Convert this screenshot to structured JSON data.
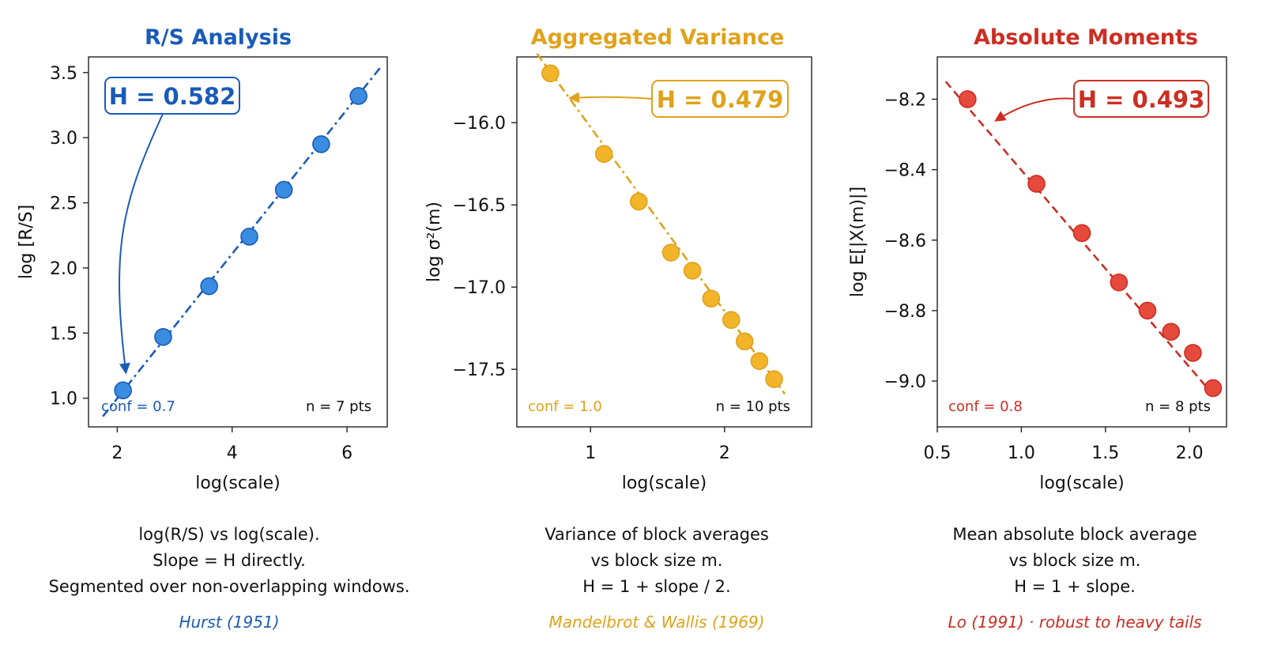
{
  "chart_data": [
    {
      "type": "scatter",
      "title": "R/S Analysis",
      "color": "#1a5bb8",
      "marker_color": "#3a8ce0",
      "xlabel": "log(scale)",
      "ylabel": "log [R/S]",
      "xlim": [
        1.5,
        6.7
      ],
      "ylim": [
        0.78,
        3.62
      ],
      "xticks": [
        2,
        4,
        6
      ],
      "yticks": [
        1.0,
        1.5,
        2.0,
        2.5,
        3.0,
        3.5
      ],
      "ytick_labels": [
        "1.0",
        "1.5",
        "2.0",
        "2.5",
        "3.0",
        "3.5"
      ],
      "xtick_labels": [
        "2",
        "4",
        "6"
      ],
      "series": [
        {
          "x": [
            2.1,
            2.8,
            3.6,
            4.3,
            4.9,
            5.55,
            6.2
          ],
          "y": [
            1.06,
            1.47,
            1.86,
            2.24,
            2.6,
            2.95,
            3.32
          ]
        }
      ],
      "fit_line": {
        "x": [
          1.75,
          6.6
        ],
        "y": [
          0.86,
          3.55
        ],
        "style": "dash-dot"
      },
      "annotation": {
        "text": "H = 0.582",
        "points_to": [
          2.15,
          1.2
        ]
      },
      "conf_text": "conf = 0.7",
      "n_text": "n = 7 pts",
      "grid": false,
      "caption": [
        "log(R/S) vs log(scale).",
        "Slope = H directly.",
        "Segmented over non-overlapping windows."
      ],
      "citation": "Hurst (1951)"
    },
    {
      "type": "scatter",
      "title": "Aggregated Variance",
      "color": "#e0a21a",
      "marker_color": "#f2b52a",
      "xlabel": "log(scale)",
      "ylabel": "log σ²(m)",
      "xlim": [
        0.45,
        2.65
      ],
      "ylim": [
        -17.85,
        -15.6
      ],
      "xticks": [
        1,
        2
      ],
      "yticks": [
        -16.0,
        -16.5,
        -17.0,
        -17.5
      ],
      "ytick_labels": [
        "−16.0",
        "−16.5",
        "−17.0",
        "−17.5"
      ],
      "xtick_labels": [
        "1",
        "2"
      ],
      "series": [
        {
          "x": [
            0.7,
            1.1,
            1.36,
            1.6,
            1.76,
            1.9,
            2.05,
            2.15,
            2.26,
            2.37
          ],
          "y": [
            -15.7,
            -16.19,
            -16.48,
            -16.79,
            -16.9,
            -17.07,
            -17.2,
            -17.33,
            -17.45,
            -17.56
          ]
        }
      ],
      "fit_line": {
        "x": [
          0.6,
          2.45
        ],
        "y": [
          -15.58,
          -17.65
        ],
        "style": "dash-dot"
      },
      "annotation": {
        "text": "H = 0.479",
        "points_to": [
          0.85,
          -15.85
        ]
      },
      "conf_text": "conf = 1.0",
      "n_text": "n = 10 pts",
      "grid": false,
      "caption": [
        "Variance of block averages",
        "vs block size m.",
        "H = 1 + slope / 2."
      ],
      "citation": "Mandelbrot & Wallis (1969)"
    },
    {
      "type": "scatter",
      "title": "Absolute Moments",
      "color": "#cc2e22",
      "marker_color": "#e64a3c",
      "xlabel": "log(scale)",
      "ylabel": "log E[|X(m)|]",
      "xlim": [
        0.5,
        2.22
      ],
      "ylim": [
        -9.13,
        -8.08
      ],
      "xticks": [
        0.5,
        1.0,
        1.5,
        2.0
      ],
      "yticks": [
        -8.2,
        -8.4,
        -8.6,
        -8.8,
        -9.0
      ],
      "ytick_labels": [
        "−8.2",
        "−8.4",
        "−8.6",
        "−8.8",
        "−9.0"
      ],
      "xtick_labels": [
        "0.5",
        "1.0",
        "1.5",
        "2.0"
      ],
      "series": [
        {
          "x": [
            0.68,
            1.09,
            1.36,
            1.58,
            1.75,
            1.89,
            2.02,
            2.14
          ],
          "y": [
            -8.2,
            -8.44,
            -8.58,
            -8.72,
            -8.8,
            -8.86,
            -8.92,
            -9.02
          ]
        }
      ],
      "fit_line": {
        "x": [
          0.55,
          2.16
        ],
        "y": [
          -8.15,
          -9.05
        ],
        "style": "dashed"
      },
      "annotation": {
        "text": "H = 0.493",
        "points_to": [
          0.85,
          -8.26
        ]
      },
      "conf_text": "conf = 0.8",
      "n_text": "n = 8 pts",
      "grid": false,
      "caption": [
        "Mean absolute block average",
        "vs block size m.",
        "H = 1 + slope."
      ],
      "citation": "Lo (1991) · robust to heavy tails"
    }
  ]
}
